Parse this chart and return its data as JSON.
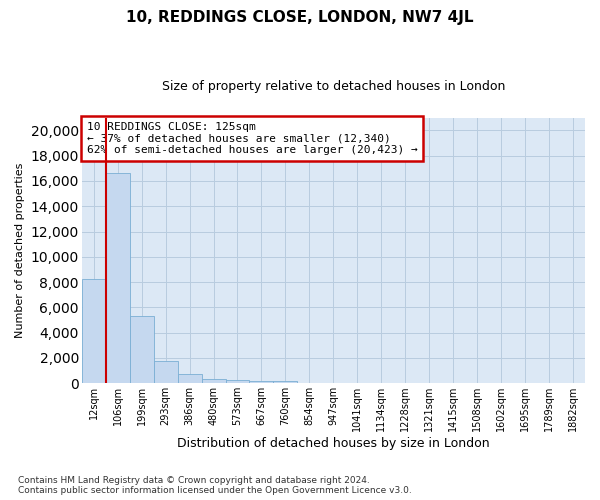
{
  "title": "10, REDDINGS CLOSE, LONDON, NW7 4JL",
  "subtitle": "Size of property relative to detached houses in London",
  "xlabel": "Distribution of detached houses by size in London",
  "ylabel": "Number of detached properties",
  "footer_line1": "Contains HM Land Registry data © Crown copyright and database right 2024.",
  "footer_line2": "Contains public sector information licensed under the Open Government Licence v3.0.",
  "annotation_line1": "10 REDDINGS CLOSE: 125sqm",
  "annotation_line2": "← 37% of detached houses are smaller (12,340)",
  "annotation_line3": "62% of semi-detached houses are larger (20,423) →",
  "bar_labels": [
    "12sqm",
    "106sqm",
    "199sqm",
    "293sqm",
    "386sqm",
    "480sqm",
    "573sqm",
    "667sqm",
    "760sqm",
    "854sqm",
    "947sqm",
    "1041sqm",
    "1134sqm",
    "1228sqm",
    "1321sqm",
    "1415sqm",
    "1508sqm",
    "1602sqm",
    "1695sqm",
    "1789sqm",
    "1882sqm"
  ],
  "bar_values": [
    8250,
    16650,
    5300,
    1750,
    700,
    350,
    270,
    210,
    190,
    0,
    0,
    0,
    0,
    0,
    0,
    0,
    0,
    0,
    0,
    0,
    0
  ],
  "bar_color": "#c5d8ef",
  "bar_edge_color": "#7aaed4",
  "marker_color": "#cc0000",
  "ylim": [
    0,
    21000
  ],
  "yticks": [
    0,
    2000,
    4000,
    6000,
    8000,
    10000,
    12000,
    14000,
    16000,
    18000,
    20000
  ],
  "plot_bg_color": "#dce8f5",
  "fig_bg_color": "#ffffff",
  "grid_color": "#b8ccdf",
  "annotation_box_color": "#cc0000",
  "title_fontsize": 11,
  "subtitle_fontsize": 9,
  "ylabel_fontsize": 8,
  "xlabel_fontsize": 9,
  "tick_fontsize": 7,
  "footer_fontsize": 6.5,
  "annotation_fontsize": 8
}
